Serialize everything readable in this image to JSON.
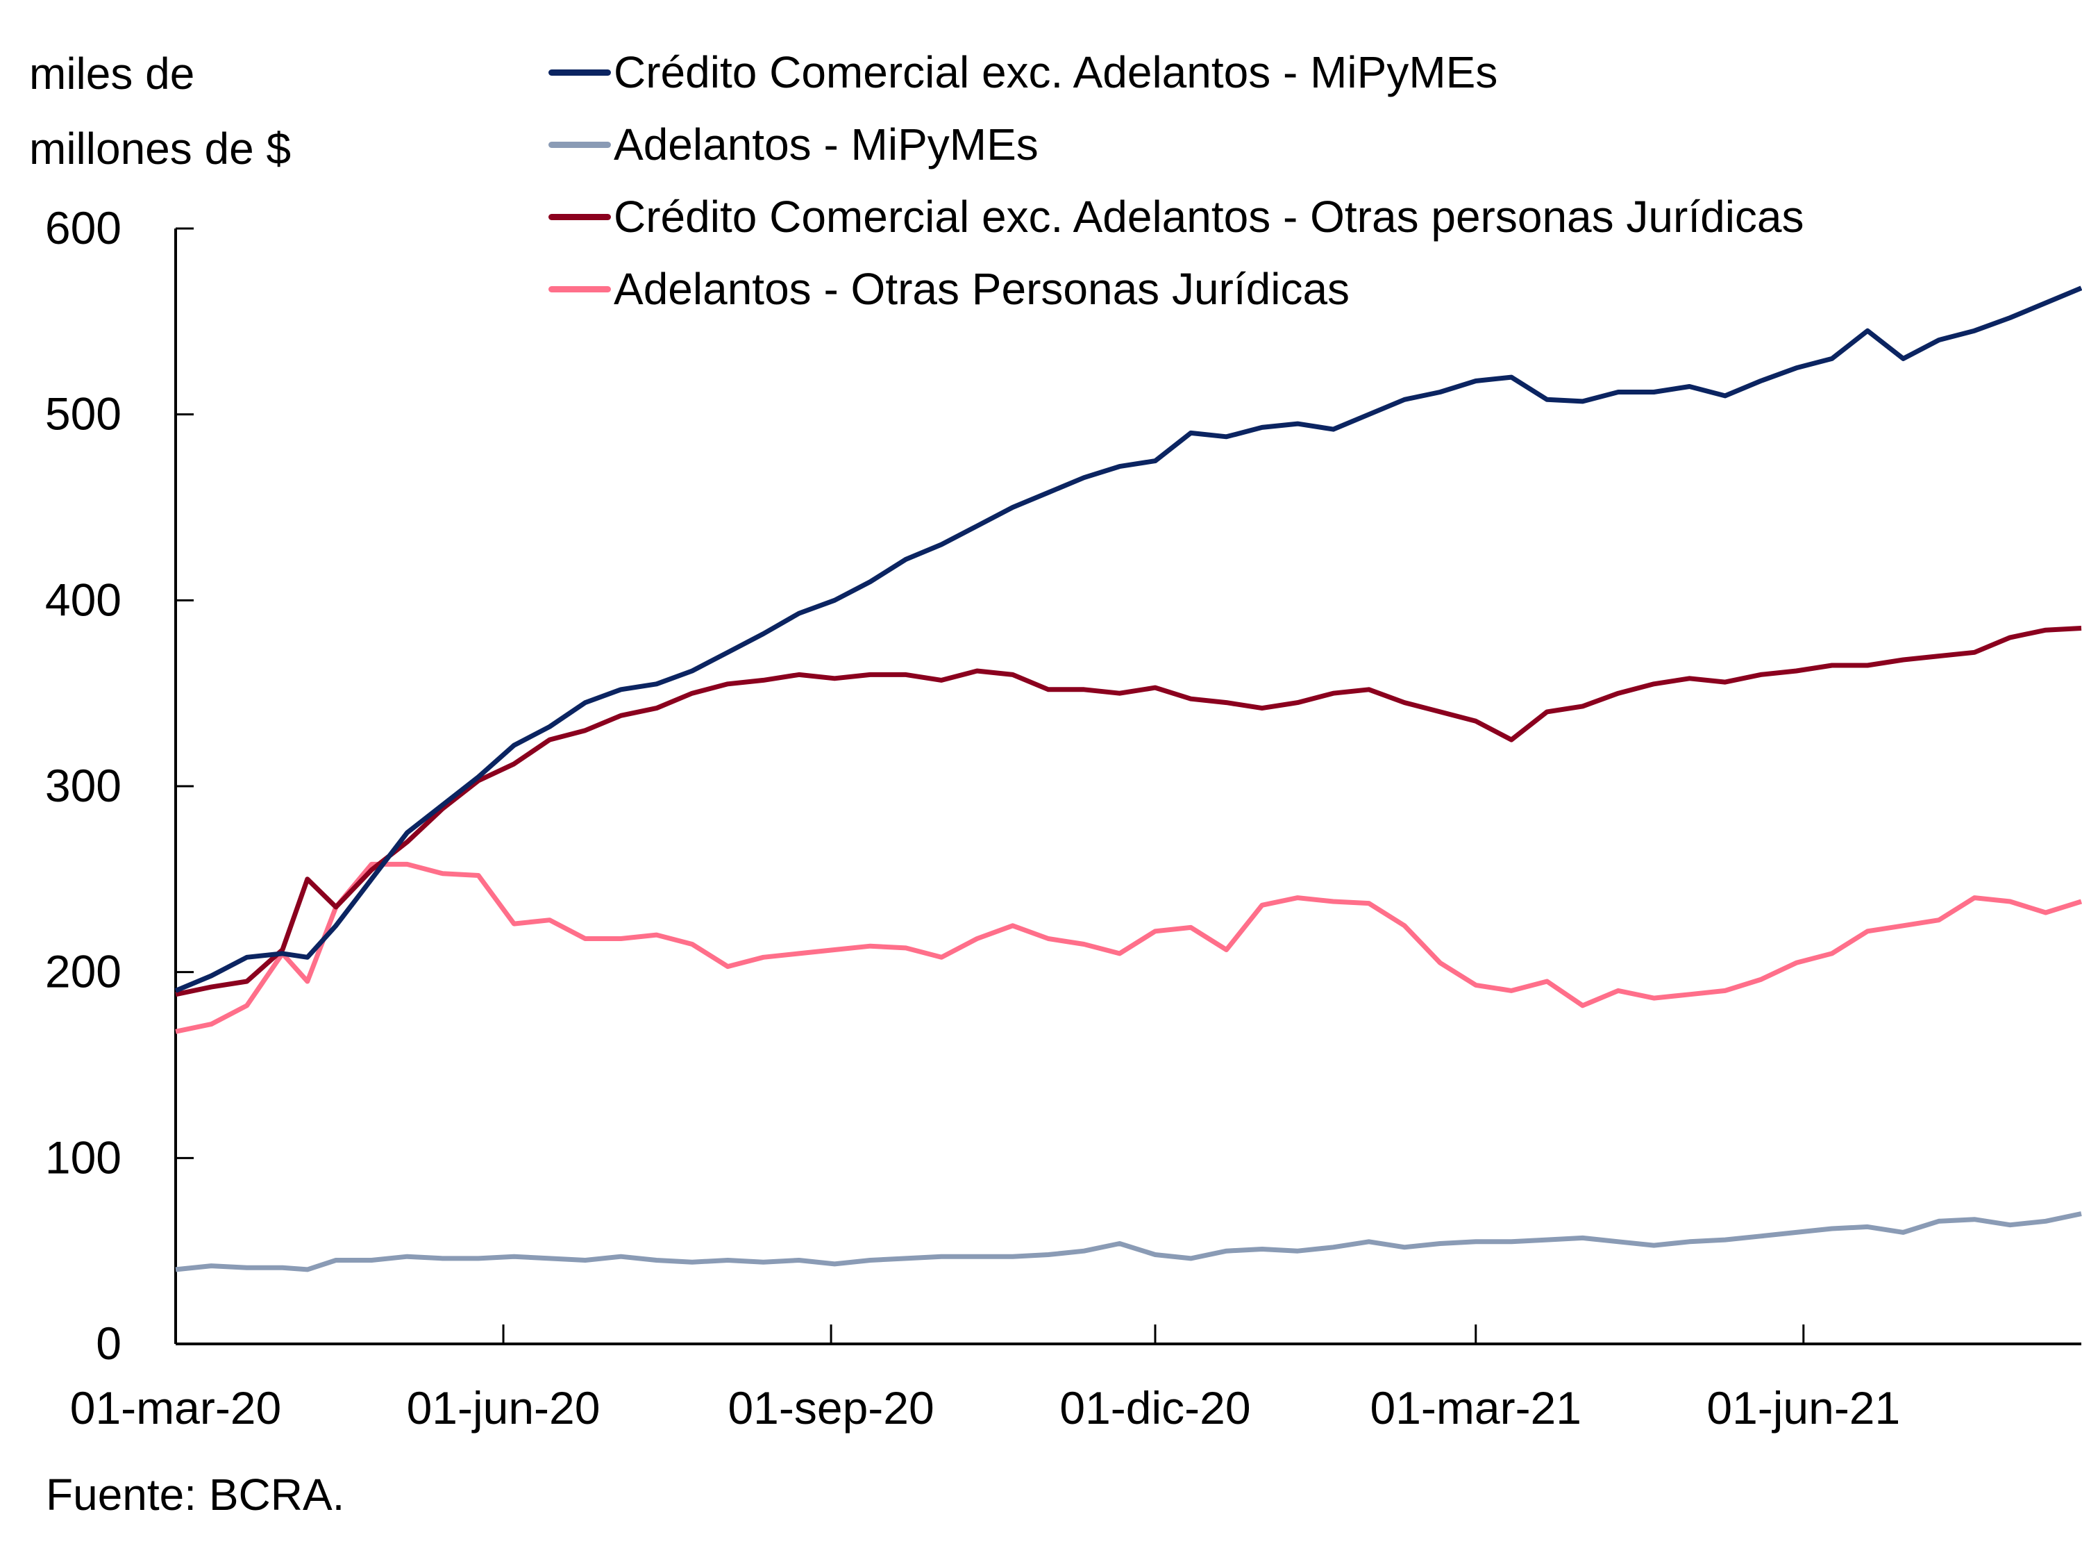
{
  "chart_data": {
    "type": "line",
    "title": "",
    "ylabel": "miles de millones de $",
    "xlabel": "",
    "source": "Fuente: BCRA.",
    "ylim": [
      0,
      600
    ],
    "yticks": [
      0,
      100,
      200,
      300,
      400,
      500,
      600
    ],
    "ytick_labels": [
      "0",
      "100",
      "200",
      "300",
      "400",
      "500",
      "600"
    ],
    "x_start": "2020-03-01",
    "x_end": "2021-08-18",
    "xticks": [
      "2020-03-01",
      "2020-06-01",
      "2020-09-01",
      "2020-12-01",
      "2021-03-01",
      "2021-06-01"
    ],
    "xtick_labels": [
      "01-mar-20",
      "01-jun-20",
      "01-sep-20",
      "01-dic-20",
      "01-mar-21",
      "01-jun-21"
    ],
    "grid": false,
    "legend_position": "top",
    "x_days": [
      0,
      10,
      20,
      30,
      37,
      45,
      55,
      65,
      75,
      85,
      95,
      105,
      115,
      125,
      135,
      145,
      155,
      165,
      175,
      185,
      195,
      205,
      215,
      225,
      235,
      245,
      255,
      265,
      275,
      285,
      295,
      305,
      315,
      325,
      335,
      345,
      355,
      365,
      375,
      385,
      395,
      405,
      415,
      425,
      435,
      445,
      455,
      465,
      475,
      485,
      495,
      505,
      515,
      525,
      535
    ],
    "series": [
      {
        "name": "Crédito Comercial exc. Adelantos - MiPyMEs",
        "color": "#0b2461",
        "values": [
          190,
          198,
          208,
          210,
          208,
          225,
          250,
          275,
          290,
          305,
          322,
          332,
          345,
          352,
          355,
          362,
          372,
          382,
          393,
          400,
          410,
          422,
          430,
          440,
          450,
          458,
          466,
          472,
          475,
          490,
          488,
          493,
          495,
          492,
          500,
          508,
          512,
          518,
          520,
          508,
          507,
          512,
          512,
          515,
          510,
          518,
          525,
          530,
          545,
          530,
          540,
          545,
          552,
          560,
          568
        ]
      },
      {
        "name": "Adelantos - MiPyMEs",
        "color": "#8a9bb5",
        "values": [
          40,
          42,
          41,
          41,
          40,
          45,
          45,
          47,
          46,
          46,
          47,
          46,
          45,
          47,
          45,
          44,
          45,
          44,
          45,
          43,
          45,
          46,
          47,
          47,
          47,
          48,
          50,
          54,
          48,
          46,
          50,
          51,
          50,
          52,
          55,
          52,
          54,
          55,
          55,
          56,
          57,
          55,
          53,
          55,
          56,
          58,
          60,
          62,
          63,
          60,
          66,
          67,
          64,
          66,
          70
        ]
      },
      {
        "name": "Crédito Comercial exc. Adelantos - Otras personas Jurídicas",
        "color": "#8b001e",
        "values": [
          188,
          192,
          195,
          212,
          250,
          235,
          255,
          270,
          288,
          303,
          312,
          325,
          330,
          338,
          342,
          350,
          355,
          357,
          360,
          358,
          360,
          360,
          357,
          362,
          360,
          352,
          352,
          350,
          353,
          347,
          345,
          342,
          345,
          350,
          352,
          345,
          340,
          335,
          325,
          340,
          343,
          350,
          355,
          358,
          356,
          360,
          362,
          365,
          365,
          368,
          370,
          372,
          380,
          384,
          385
        ]
      },
      {
        "name": "Adelantos - Otras Personas Jurídicas",
        "color": "#ff6f8a",
        "values": [
          168,
          172,
          182,
          210,
          195,
          235,
          258,
          258,
          253,
          252,
          226,
          228,
          218,
          218,
          220,
          215,
          203,
          208,
          210,
          212,
          214,
          213,
          208,
          218,
          225,
          218,
          215,
          210,
          222,
          224,
          212,
          236,
          240,
          238,
          237,
          225,
          205,
          193,
          190,
          195,
          182,
          190,
          186,
          188,
          190,
          196,
          205,
          210,
          222,
          225,
          228,
          240,
          238,
          232,
          238
        ]
      }
    ]
  }
}
